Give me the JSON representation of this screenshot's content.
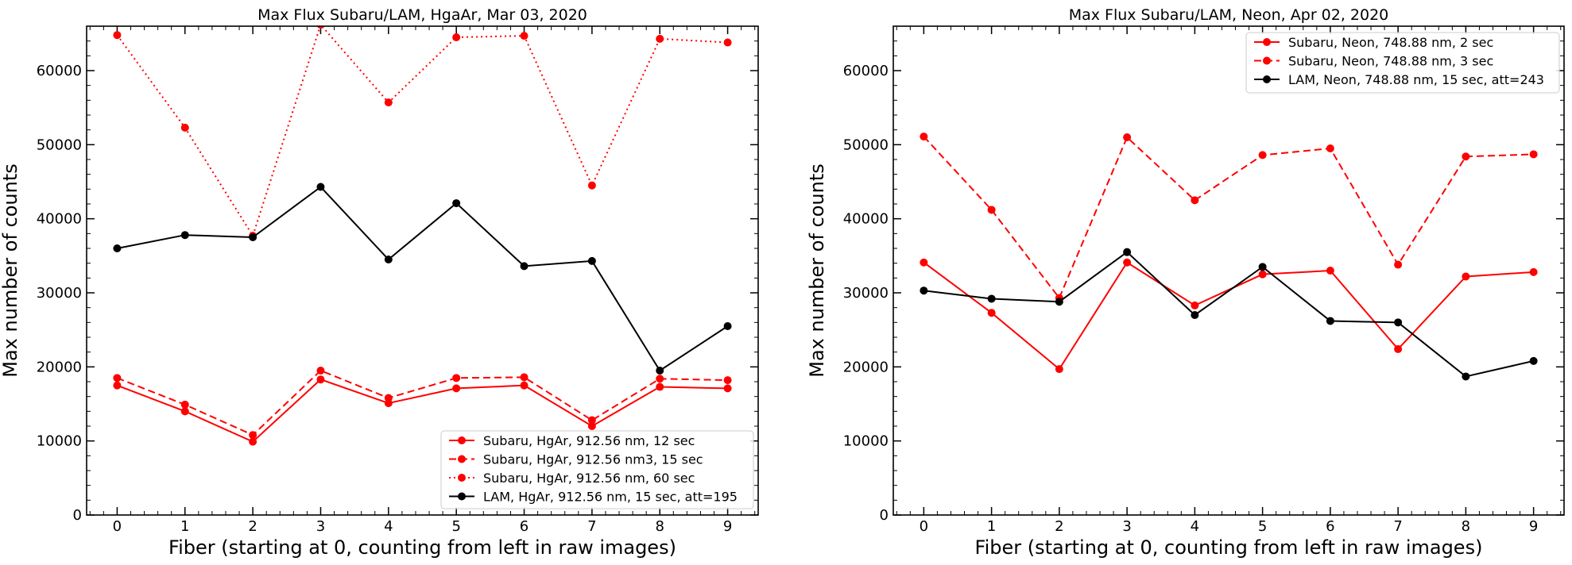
{
  "chart_data": [
    {
      "type": "line",
      "title": "Max Flux Subaru/LAM, HgaAr, Mar 03, 2020",
      "xlabel": "Fiber (starting at 0, counting from left in raw images)",
      "ylabel": "Max number of counts",
      "xlim": [
        -0.45,
        9.45
      ],
      "ylim": [
        0,
        66000
      ],
      "xticks": [
        "0",
        "1",
        "2",
        "3",
        "4",
        "5",
        "6",
        "7",
        "8",
        "9"
      ],
      "yticks": [
        "0",
        "10000",
        "20000",
        "30000",
        "40000",
        "50000",
        "60000"
      ],
      "grid": false,
      "legend_position": "lower-right",
      "x": [
        0,
        1,
        2,
        3,
        4,
        5,
        6,
        7,
        8,
        9
      ],
      "series": [
        {
          "name": "Subaru, HgAr, 912.56 nm, 12 sec",
          "color": "#ff0000",
          "linestyle": "solid",
          "values": [
            17500,
            14000,
            9900,
            18300,
            15100,
            17100,
            17500,
            12000,
            17300,
            17100
          ]
        },
        {
          "name": "Subaru, HgAr, 912.56 nm3, 15 sec",
          "color": "#ff0000",
          "linestyle": "dashed",
          "values": [
            18500,
            14900,
            10800,
            19500,
            15800,
            18500,
            18600,
            12800,
            18400,
            18200
          ]
        },
        {
          "name": "Subaru, HgAr, 912.56 nm, 60 sec",
          "color": "#ff0000",
          "linestyle": "dotted",
          "values": [
            64800,
            52300,
            37700,
            66200,
            55700,
            64500,
            64700,
            44500,
            64300,
            63800
          ]
        },
        {
          "name": "LAM, HgAr, 912.56 nm, 15 sec, att=195",
          "color": "#000000",
          "linestyle": "solid",
          "values": [
            36000,
            37800,
            37500,
            44300,
            34500,
            42100,
            33600,
            34300,
            19500,
            25500
          ]
        }
      ]
    },
    {
      "type": "line",
      "title": "Max Flux Subaru/LAM, Neon, Apr 02, 2020",
      "xlabel": "Fiber (starting at 0, counting from left in raw images)",
      "ylabel": "Max number of counts",
      "xlim": [
        -0.45,
        9.45
      ],
      "ylim": [
        0,
        66000
      ],
      "xticks": [
        "0",
        "1",
        "2",
        "3",
        "4",
        "5",
        "6",
        "7",
        "8",
        "9"
      ],
      "yticks": [
        "0",
        "10000",
        "20000",
        "30000",
        "40000",
        "50000",
        "60000"
      ],
      "grid": false,
      "legend_position": "upper-right",
      "x": [
        0,
        1,
        2,
        3,
        4,
        5,
        6,
        7,
        8,
        9
      ],
      "series": [
        {
          "name": "Subaru, Neon, 748.88 nm, 2 sec",
          "color": "#ff0000",
          "linestyle": "solid",
          "values": [
            34100,
            27300,
            19700,
            34100,
            28300,
            32500,
            33000,
            22400,
            32200,
            32800
          ]
        },
        {
          "name": "Subaru, Neon, 748.88 nm, 3 sec",
          "color": "#ff0000",
          "linestyle": "dashed",
          "values": [
            51100,
            41200,
            29300,
            51000,
            42500,
            48600,
            49500,
            33800,
            48400,
            48700
          ]
        },
        {
          "name": "LAM, Neon, 748.88 nm, 15 sec, att=243",
          "color": "#000000",
          "linestyle": "solid",
          "values": [
            30300,
            29200,
            28800,
            35500,
            27000,
            33500,
            26200,
            26000,
            18700,
            20800
          ]
        }
      ]
    }
  ]
}
